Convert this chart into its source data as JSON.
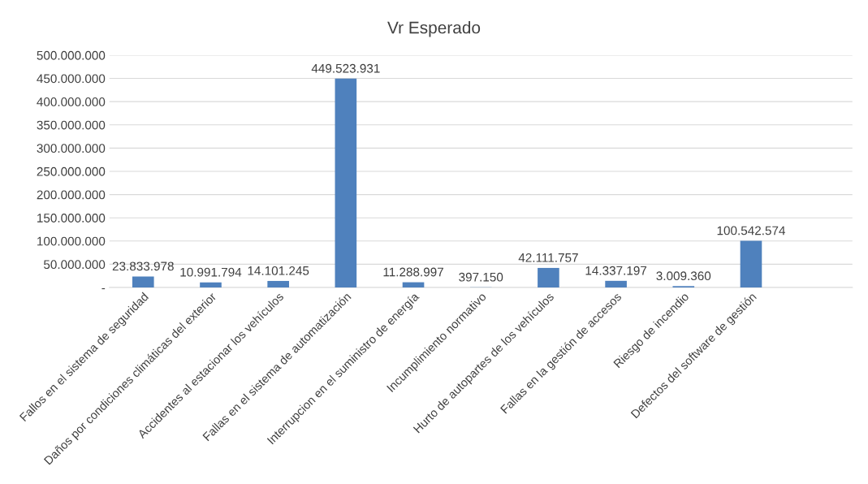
{
  "chart_data": {
    "type": "bar",
    "title": "Vr Esperado",
    "categories": [
      "Fallos en el sistema de seguridad",
      "Daños por condiciones climáticas del exterior",
      "Accidentes al estacionar los vehículos",
      "Fallas en el sistema de automatización",
      "Interrupcion en el suministro de energía",
      "Incumplimiento normativo",
      "Hurto de autopartes de los vehículos",
      "Fallas en la gestión de accesos",
      "Riesgo de incendio",
      "Defectos del software de gestión",
      null
    ],
    "values": [
      23833978,
      10991794,
      14101245,
      449523931,
      11288997,
      397150,
      42111757,
      14337197,
      3009360,
      100542574,
      null
    ],
    "value_labels": [
      "23.833.978",
      "10.991.794",
      "14.101.245",
      "449.523.931",
      "11.288.997",
      "397.150",
      "42.111.757",
      "14.337.197",
      "3.009.360",
      "100.542.574",
      null
    ],
    "color": "#4f81bd",
    "ylim": [
      0,
      500000000
    ],
    "yticks": [
      {
        "value": 0,
        "label": "-"
      },
      {
        "value": 50000000,
        "label": "50.000.000"
      },
      {
        "value": 100000000,
        "label": "100.000.000"
      },
      {
        "value": 150000000,
        "label": "150.000.000"
      },
      {
        "value": 200000000,
        "label": "200.000.000"
      },
      {
        "value": 250000000,
        "label": "250.000.000"
      },
      {
        "value": 300000000,
        "label": "300.000.000"
      },
      {
        "value": 350000000,
        "label": "350.000.000"
      },
      {
        "value": 400000000,
        "label": "400.000.000"
      },
      {
        "value": 450000000,
        "label": "450.000.000"
      },
      {
        "value": 500000000,
        "label": "500.000.000"
      }
    ],
    "grid": "y"
  }
}
